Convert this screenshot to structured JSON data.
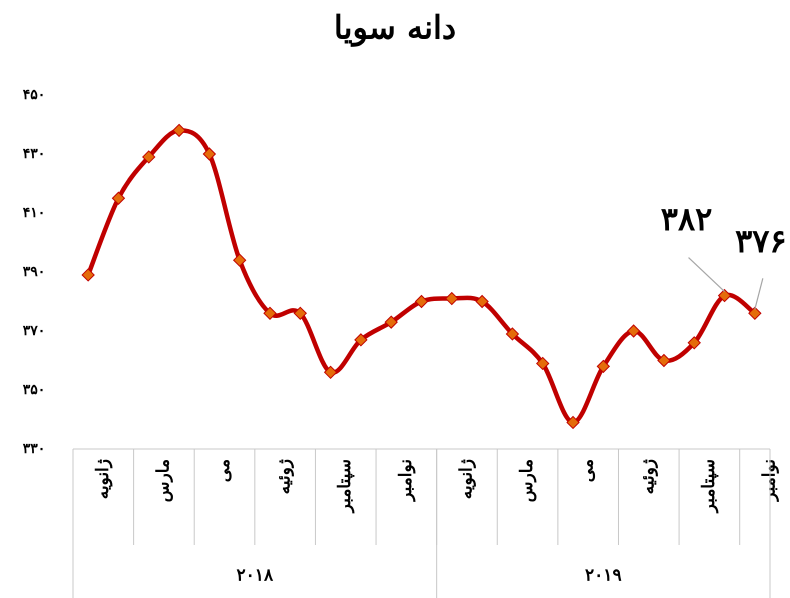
{
  "chart_data": {
    "type": "line",
    "title": "دانه سویا",
    "categories": [
      "ژانویه",
      null,
      "مارس",
      null,
      "می",
      null,
      "ژوئیه",
      null,
      "سپتامبر",
      null,
      "نوامبر",
      null,
      "ژانویه",
      null,
      "مارس",
      null,
      "می",
      null,
      "ژوئیه",
      null,
      "سپتامبر",
      null,
      "نوامبر"
    ],
    "x_groups": [
      "۲۰۱۸",
      "۲۰۱۹"
    ],
    "series": [
      {
        "name": "دانه سویا",
        "color": "#c00000",
        "marker_color": "#e46c0a",
        "values": [
          389,
          415,
          429,
          438,
          430,
          394,
          376,
          376,
          356,
          367,
          373,
          380,
          381,
          380,
          369,
          359,
          339,
          358,
          370,
          360,
          366,
          382,
          376
        ],
        "value_labels": [
          null,
          null,
          null,
          null,
          null,
          null,
          null,
          null,
          null,
          null,
          null,
          null,
          null,
          null,
          null,
          null,
          null,
          null,
          null,
          null,
          null,
          "۳۸۲",
          "۳۷۶"
        ]
      }
    ],
    "ylim": [
      330,
      450
    ],
    "yticks": [
      {
        "value": 330,
        "label": "۳۳۰"
      },
      {
        "value": 350,
        "label": "۳۵۰"
      },
      {
        "value": 370,
        "label": "۳۷۰"
      },
      {
        "value": 390,
        "label": "۳۹۰"
      },
      {
        "value": 410,
        "label": "۴۱۰"
      },
      {
        "value": 430,
        "label": "۴۳۰"
      },
      {
        "value": 450,
        "label": "۴۵۰"
      }
    ],
    "grid": false
  }
}
